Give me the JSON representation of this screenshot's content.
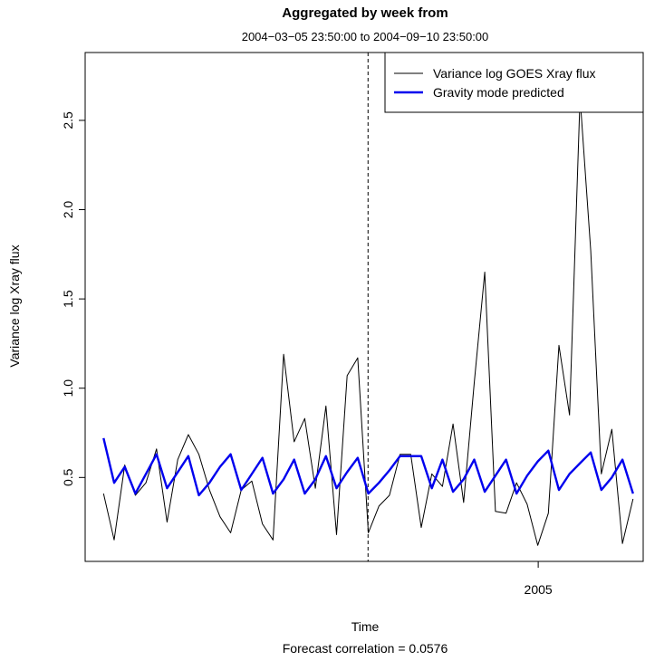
{
  "chart_data": {
    "type": "line",
    "title": "Aggregated by week from",
    "subtitle": "2004−03−05 23:50:00 to 2004−09−10 23:50:00",
    "xlabel": "Time",
    "footnote": "Forecast correlation = 0.0576",
    "ylabel": "Variance log Xray flux",
    "xlim": [
      2004.18,
      2005.19
    ],
    "ylim": [
      0.03,
      2.88
    ],
    "x_ticks": [
      {
        "value": 2005.0,
        "label": "2005"
      }
    ],
    "y_ticks": [
      {
        "value": 0.5,
        "label": "0.5"
      },
      {
        "value": 1.0,
        "label": "1.0"
      },
      {
        "value": 1.5,
        "label": "1.5"
      },
      {
        "value": 2.0,
        "label": "2.0"
      },
      {
        "value": 2.5,
        "label": "2.5"
      }
    ],
    "forecast_start": 2004.692,
    "legend_position": "top-right",
    "grid": false,
    "series": [
      {
        "name": "Variance log GOES Xray flux",
        "color": "#000000",
        "x": [
          2004.2133,
          2004.2325,
          2004.2517,
          2004.2708,
          2004.29,
          2004.3092,
          2004.3283,
          2004.3475,
          2004.3667,
          2004.3858,
          2004.405,
          2004.4242,
          2004.4433,
          2004.4625,
          2004.4817,
          2004.5008,
          2004.52,
          2004.5392,
          2004.5583,
          2004.5775,
          2004.5967,
          2004.6158,
          2004.635,
          2004.6542,
          2004.6733,
          2004.6925,
          2004.7117,
          2004.7308,
          2004.75,
          2004.7692,
          2004.7883,
          2004.8075,
          2004.8267,
          2004.8458,
          2004.865,
          2004.8842,
          2004.9033,
          2004.9225,
          2004.9417,
          2004.9608,
          2004.98,
          2004.9992,
          2005.0183,
          2005.0375,
          2005.0567,
          2005.0758,
          2005.095,
          2005.1142,
          2005.1333,
          2005.1525,
          2005.1717
        ],
        "values": [
          0.41,
          0.15,
          0.57,
          0.4,
          0.47,
          0.66,
          0.25,
          0.6,
          0.74,
          0.63,
          0.43,
          0.28,
          0.19,
          0.43,
          0.48,
          0.24,
          0.15,
          1.19,
          0.7,
          0.83,
          0.44,
          0.9,
          0.18,
          1.07,
          1.17,
          0.19,
          0.34,
          0.4,
          0.63,
          0.63,
          0.22,
          0.52,
          0.45,
          0.8,
          0.36,
          1.03,
          1.65,
          0.31,
          0.3,
          0.47,
          0.35,
          0.12,
          0.3,
          1.24,
          0.85,
          2.63,
          1.77,
          0.52,
          0.77,
          0.13,
          0.38
        ]
      },
      {
        "name": "Gravity mode predicted",
        "color": "#0000ee",
        "x": [
          2004.2133,
          2004.2325,
          2004.2517,
          2004.2708,
          2004.29,
          2004.3092,
          2004.3283,
          2004.3475,
          2004.3667,
          2004.3858,
          2004.405,
          2004.4242,
          2004.4433,
          2004.4625,
          2004.4817,
          2004.5008,
          2004.52,
          2004.5392,
          2004.5583,
          2004.5775,
          2004.5967,
          2004.6158,
          2004.635,
          2004.6542,
          2004.6733,
          2004.6925,
          2004.7117,
          2004.7308,
          2004.75,
          2004.7692,
          2004.7883,
          2004.8075,
          2004.8267,
          2004.8458,
          2004.865,
          2004.8842,
          2004.9033,
          2004.9225,
          2004.9417,
          2004.9608,
          2004.98,
          2004.9992,
          2005.0183,
          2005.0375,
          2005.0567,
          2005.0758,
          2005.095,
          2005.1142,
          2005.1333,
          2005.1525,
          2005.1717
        ],
        "values": [
          0.72,
          0.47,
          0.56,
          0.41,
          0.52,
          0.63,
          0.44,
          0.53,
          0.62,
          0.4,
          0.47,
          0.56,
          0.63,
          0.43,
          0.52,
          0.61,
          0.41,
          0.49,
          0.6,
          0.41,
          0.49,
          0.62,
          0.44,
          0.53,
          0.61,
          0.41,
          0.47,
          0.54,
          0.62,
          0.62,
          0.62,
          0.44,
          0.6,
          0.42,
          0.49,
          0.6,
          0.42,
          0.51,
          0.6,
          0.41,
          0.51,
          0.59,
          0.65,
          0.43,
          0.52,
          0.58,
          0.64,
          0.43,
          0.5,
          0.6,
          0.41
        ]
      }
    ]
  }
}
